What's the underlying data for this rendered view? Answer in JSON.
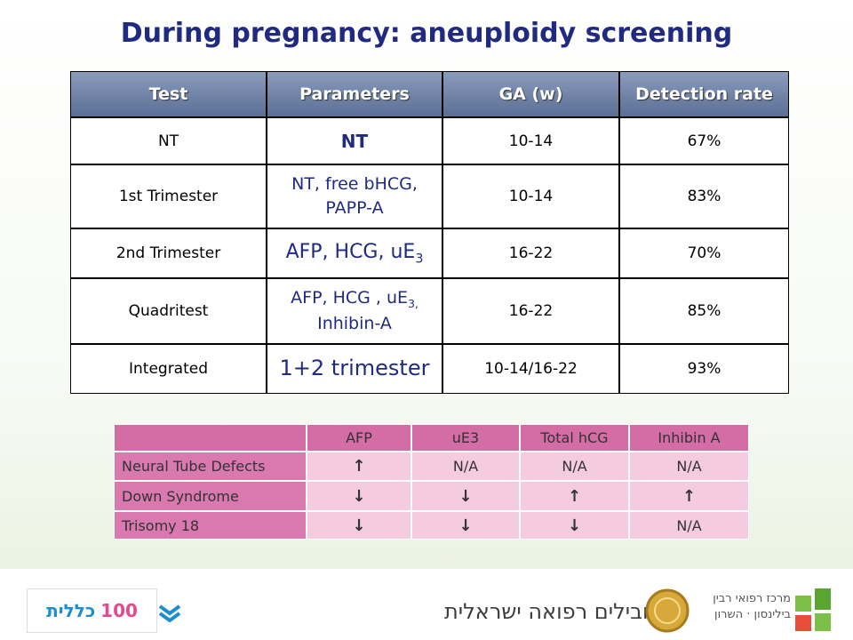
{
  "title": "During pregnancy: aneuploidy screening",
  "table": {
    "headers": [
      "Test",
      "Parameters",
      "GA (w)",
      "Detection rate"
    ],
    "rows": [
      [
        {
          "text": "NT"
        },
        {
          "text": "NT",
          "bold": true,
          "size": 20
        },
        {
          "text": "10-14"
        },
        {
          "text": "67%"
        }
      ],
      [
        {
          "text": "1st Trimester"
        },
        {
          "text": "NT, free bHCG,"
        },
        {
          "text": "10-14"
        },
        {
          "text": "83%"
        }
      ],
      [
        {
          "text": "2nd Trimester"
        },
        {
          "text": "AFP, HCG, uE",
          "sub": "3",
          "size": 22
        },
        {
          "text": "16-22"
        },
        {
          "text": "70%"
        }
      ],
      [
        {
          "text": "Quadritest"
        },
        {
          "text": "AFP, HCG , uE",
          "sub": "3,"
        },
        {
          "text": "16-22"
        },
        {
          "text": "85%"
        }
      ],
      [
        {
          "text": "Integrated"
        },
        {
          "text": "1+2 trimester",
          "size": 24
        },
        {
          "text": "10-14/16-22"
        },
        {
          "text": "93%"
        }
      ]
    ],
    "second_lines": {
      "1": "PAPP-A",
      "3": "Inhibin-A"
    }
  },
  "markers": {
    "headers": [
      "AFP",
      "uE3",
      "Total hCG",
      "Inhibin A"
    ],
    "rows": [
      {
        "label": "Neural Tube Defects",
        "cells": [
          "↑",
          "N/A",
          "N/A",
          "N/A"
        ]
      },
      {
        "label": "Down Syndrome",
        "cells": [
          "↓",
          "↓",
          "↑",
          "↑"
        ]
      },
      {
        "label": "Trisomy 18",
        "cells": [
          "↓",
          "↓",
          "↓",
          "N/A"
        ]
      }
    ]
  },
  "footer": {
    "slogan": "מובילים רפואה ישראלית",
    "clalit": "כללית",
    "clalit_years": "100",
    "center_top": "מרכז רפואי רבין",
    "center_bottom": "בילינסון · השרון"
  }
}
